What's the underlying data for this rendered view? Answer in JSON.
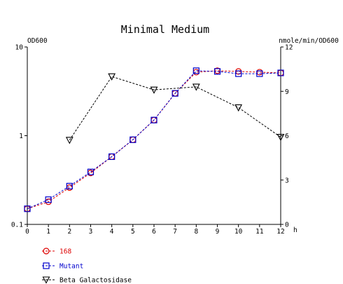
{
  "chart_data": {
    "type": "line",
    "title": "Minimal Medium",
    "left_axis": {
      "label": "OD600",
      "scale": "log",
      "range": [
        0.1,
        10
      ],
      "ticks": [
        "0.1",
        "1",
        "10"
      ],
      "tick_values": [
        0.1,
        1,
        10
      ]
    },
    "right_axis": {
      "label": "nmole/min/OD600",
      "scale": "linear",
      "range": [
        0,
        12
      ],
      "ticks": [
        "0",
        "3",
        "6",
        "9",
        "12"
      ],
      "tick_values": [
        0,
        3,
        6,
        9,
        12
      ]
    },
    "x_axis": {
      "label": "h",
      "range": [
        0,
        12
      ],
      "ticks": [
        "0",
        "1",
        "2",
        "3",
        "4",
        "5",
        "6",
        "7",
        "8",
        "9",
        "10",
        "11",
        "12"
      ]
    },
    "grid": false,
    "legend_position": "bottom-left",
    "series": [
      {
        "name": "168",
        "axis": "left",
        "marker": "circle",
        "color": "#dd0000",
        "x": [
          0,
          1,
          2,
          3,
          4,
          5,
          6,
          7,
          8,
          9,
          10,
          11,
          12
        ],
        "values": [
          0.15,
          0.18,
          0.26,
          0.38,
          0.58,
          0.9,
          1.5,
          3.0,
          5.2,
          5.4,
          5.3,
          5.2,
          5.1
        ]
      },
      {
        "name": "Mutant",
        "axis": "left",
        "marker": "square",
        "color": "#0000cc",
        "x": [
          0,
          1,
          2,
          3,
          4,
          5,
          6,
          7,
          8,
          9,
          10,
          11,
          12
        ],
        "values": [
          0.15,
          0.19,
          0.27,
          0.39,
          0.58,
          0.9,
          1.5,
          3.0,
          5.4,
          5.3,
          5.0,
          5.0,
          5.1
        ]
      },
      {
        "name": "Beta Galactosidase",
        "axis": "right",
        "marker": "triangle-down",
        "color": "#000000",
        "x": [
          2,
          4,
          6,
          8,
          10,
          12
        ],
        "values": [
          5.7,
          10.0,
          9.1,
          9.3,
          7.9,
          5.9
        ]
      }
    ]
  }
}
